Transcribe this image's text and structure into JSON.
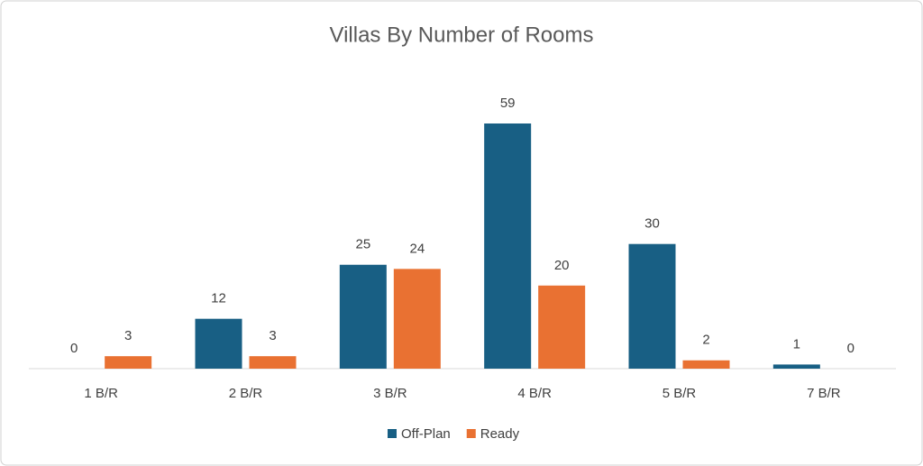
{
  "chart_data": {
    "type": "bar",
    "title": "Villas By Number of Rooms",
    "categories": [
      "1 B/R",
      "2 B/R",
      "3 B/R",
      "4 B/R",
      "5 B/R",
      "7 B/R"
    ],
    "series": [
      {
        "name": "Off-Plan",
        "color": "#185f84",
        "values": [
          0,
          12,
          25,
          59,
          30,
          1
        ]
      },
      {
        "name": "Ready",
        "color": "#e97132",
        "values": [
          3,
          3,
          24,
          20,
          2,
          0
        ]
      }
    ]
  }
}
